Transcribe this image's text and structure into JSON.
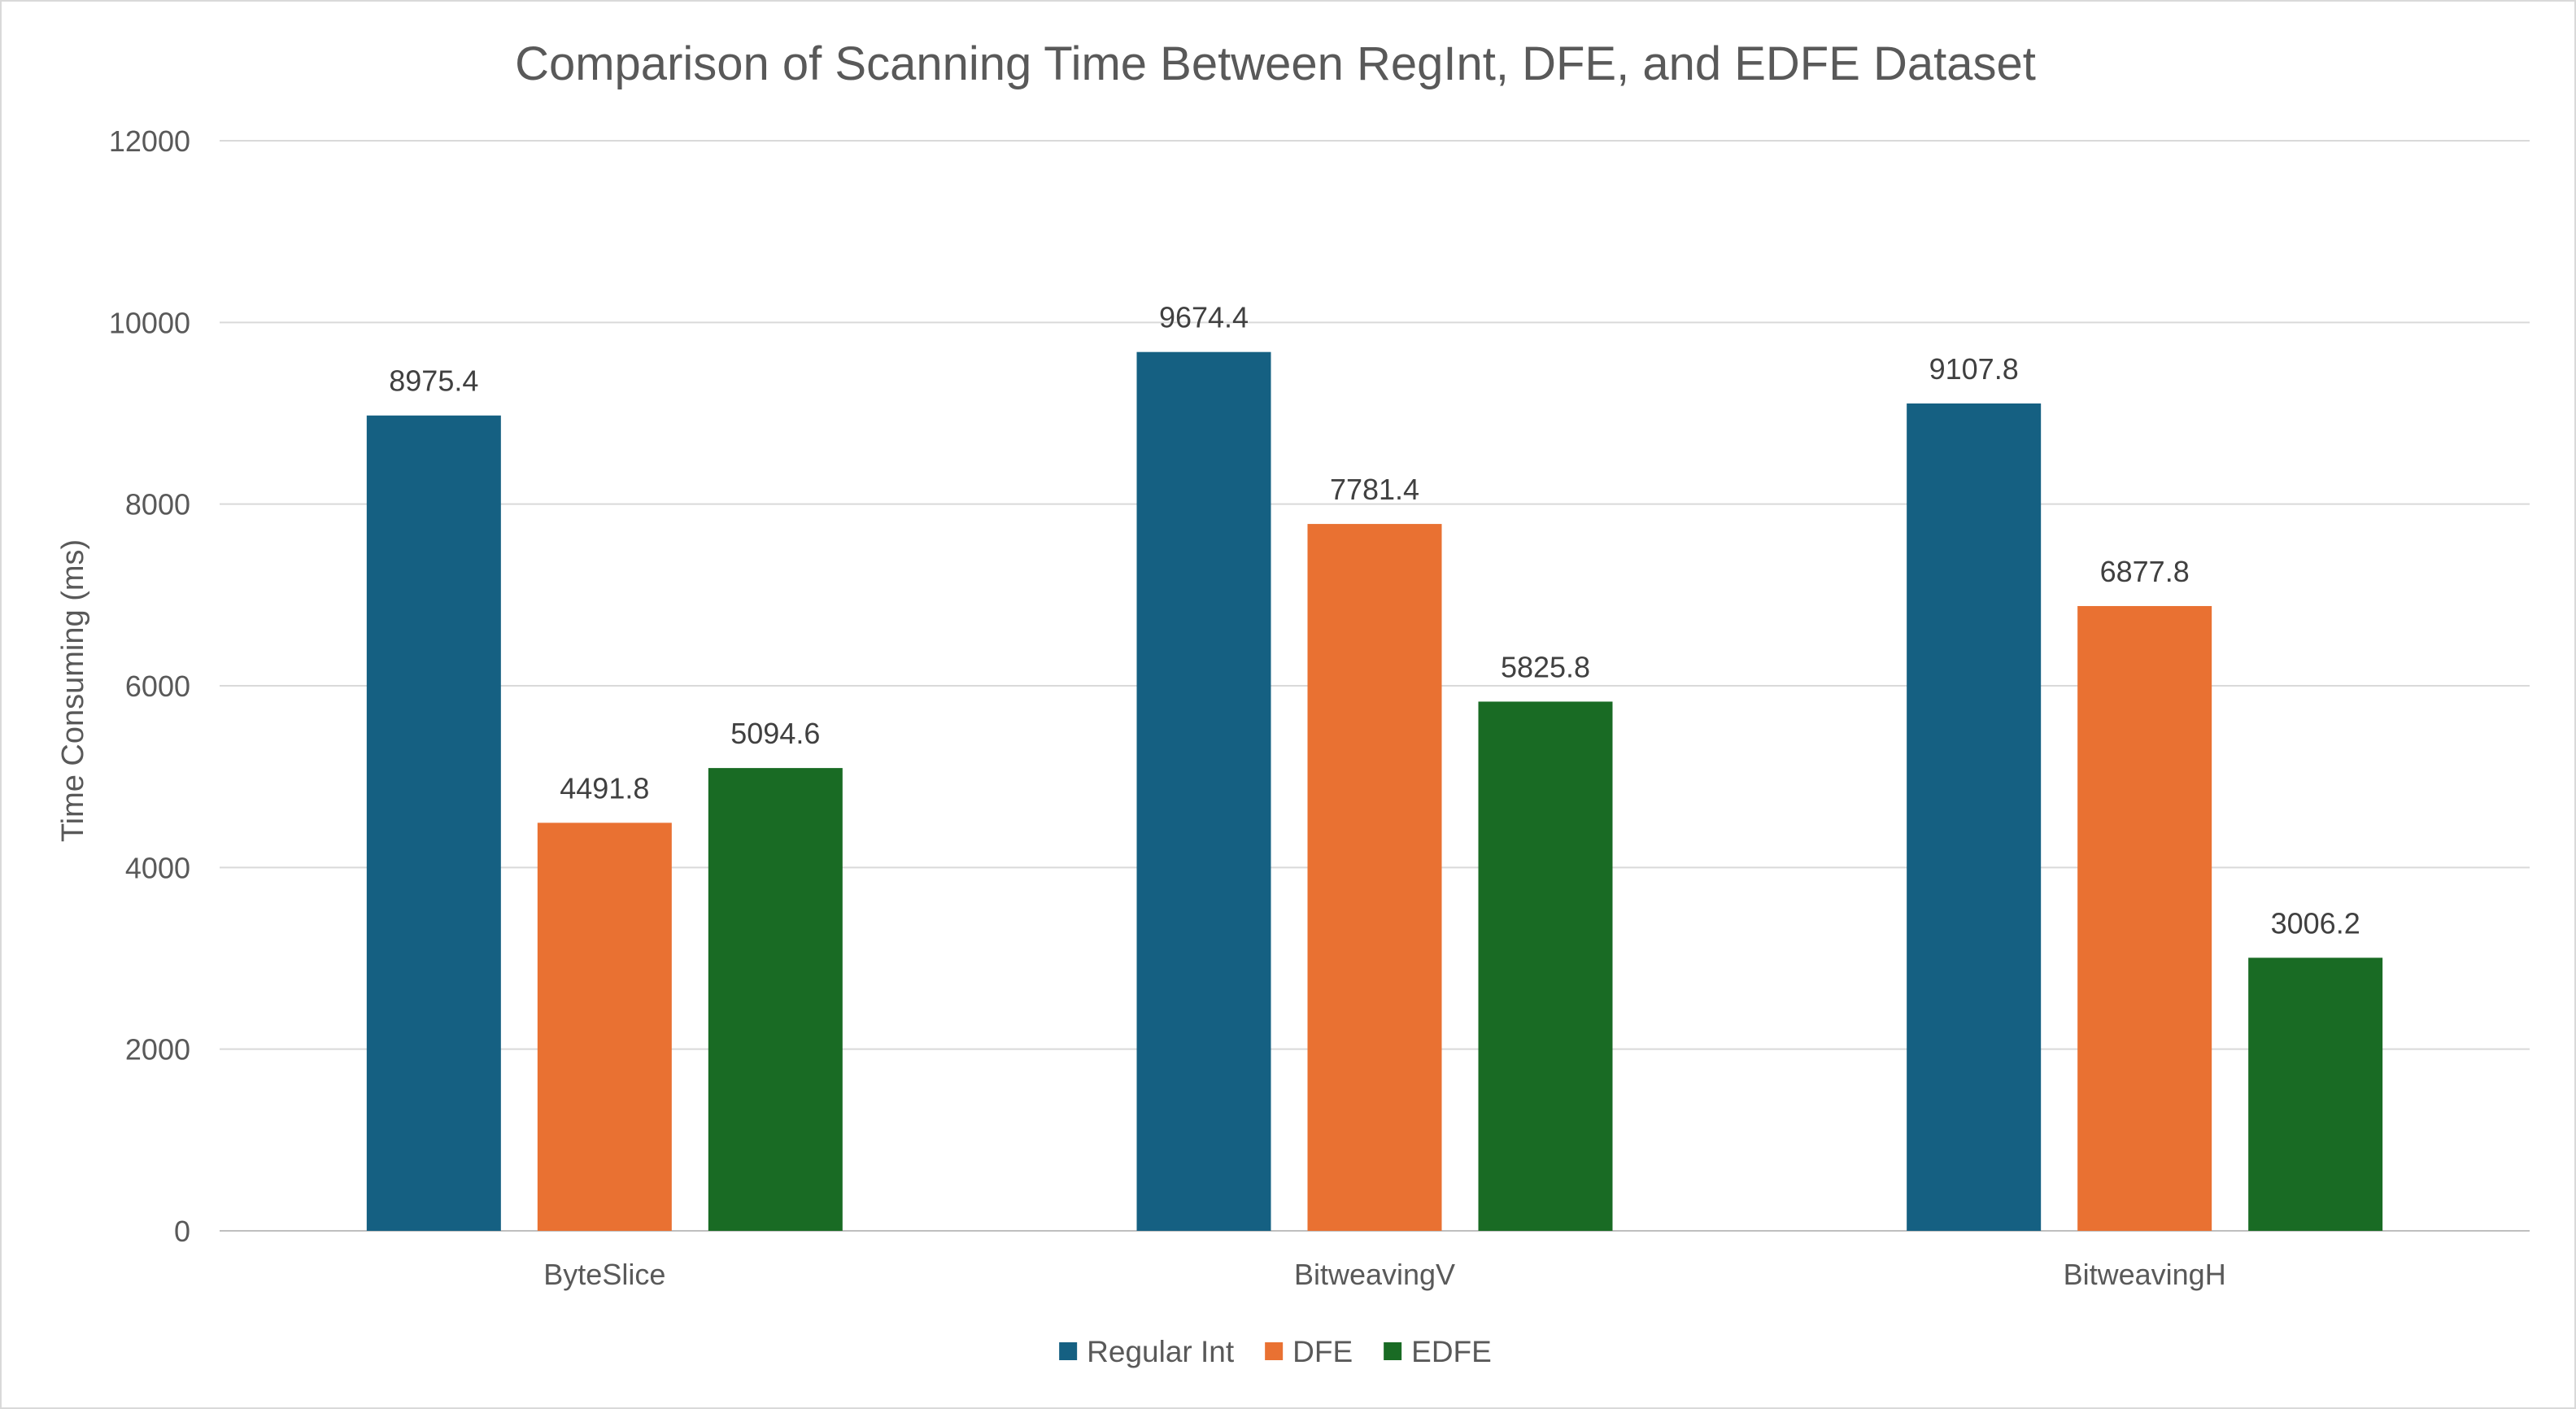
{
  "chart_data": {
    "type": "bar",
    "title": "Comparison of Scanning Time Between RegInt, DFE, and EDFE Dataset",
    "xlabel": "",
    "ylabel": "Time Consuming (ms)",
    "ylim": [
      0,
      12000
    ],
    "yticks": [
      0,
      2000,
      4000,
      6000,
      8000,
      10000,
      12000
    ],
    "grid": true,
    "legend_position": "bottom",
    "categories": [
      "ByteSlice",
      "BitweavingV",
      "BitweavingH"
    ],
    "series": [
      {
        "name": "Regular Int",
        "color": "#156082",
        "values": [
          8975.4,
          9674.4,
          9107.8
        ]
      },
      {
        "name": "DFE",
        "color": "#E97132",
        "values": [
          4491.8,
          7781.4,
          6877.8
        ]
      },
      {
        "name": "EDFE",
        "color": "#196B24",
        "values": [
          5094.6,
          5825.8,
          3006.2
        ]
      }
    ]
  }
}
